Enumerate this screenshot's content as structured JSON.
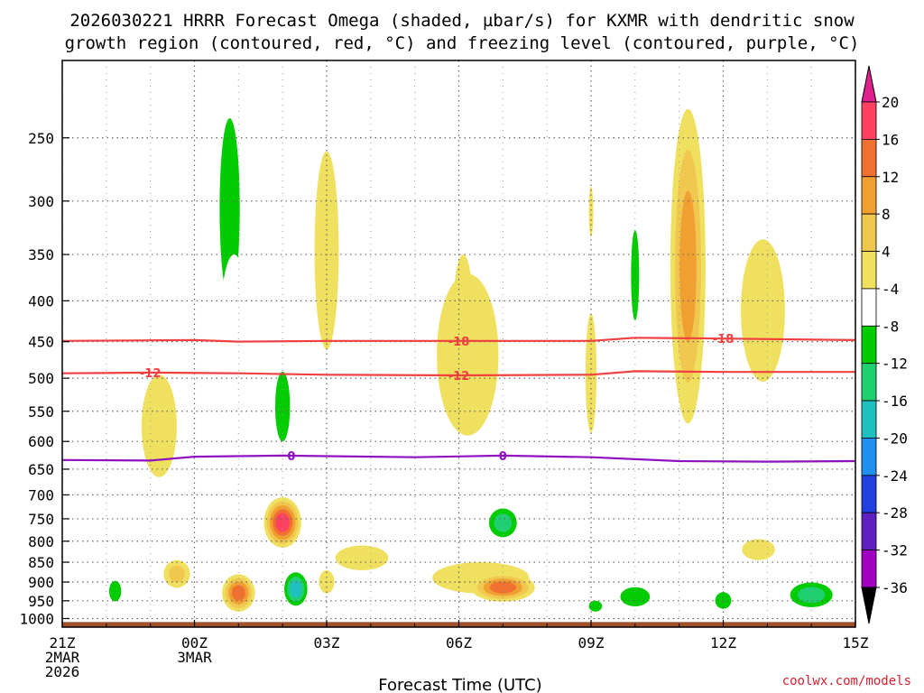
{
  "chart_data": {
    "type": "heatmap",
    "title_line1": "2026030221 HRRR Forecast Omega (shaded, µbar/s) for KXMR with dendritic snow",
    "title_line2": "growth region (contoured, red, °C) and freezing level (contoured, purple, °C)",
    "xlabel": "Forecast Time (UTC)",
    "ylabel": "",
    "credit": "coolwx.com/models",
    "y_ticks": [
      250,
      300,
      350,
      400,
      450,
      500,
      550,
      600,
      650,
      700,
      750,
      800,
      850,
      900,
      950,
      1000
    ],
    "y_range_hpa": [
      200,
      1025
    ],
    "x_range_hours": [
      0,
      18
    ],
    "x_ticks": [
      {
        "hour": 0,
        "lines": [
          "21Z",
          "2MAR",
          "2026"
        ]
      },
      {
        "hour": 3,
        "lines": [
          "00Z",
          "3MAR"
        ]
      },
      {
        "hour": 6,
        "lines": [
          "03Z"
        ]
      },
      {
        "hour": 9,
        "lines": [
          "06Z"
        ]
      },
      {
        "hour": 12,
        "lines": [
          "09Z"
        ]
      },
      {
        "hour": 15,
        "lines": [
          "12Z"
        ]
      },
      {
        "hour": 18,
        "lines": [
          "15Z"
        ]
      }
    ],
    "colorbar": {
      "labels": [
        "20",
        "16",
        "12",
        "8",
        "4",
        "-4",
        "-8",
        "-12",
        "-16",
        "-20",
        "-24",
        "-28",
        "-32",
        "-36"
      ],
      "colors": [
        "#ff4060",
        "#f07030",
        "#f0a030",
        "#f0c850",
        "#f0e060",
        "#ffffff",
        "#00cc00",
        "#20d070",
        "#20c0c0",
        "#2090f0",
        "#2040e0",
        "#6020c0",
        "#a000c0",
        "#a0a0a0"
      ],
      "top_arrow_color": "#e0208c",
      "bottom_arrow_color": "#000000"
    },
    "contours": [
      {
        "name": "-18 C isotherm",
        "label": "-18",
        "color": "#f04040",
        "labels_at_hours": [
          9.0,
          15.0
        ],
        "points": [
          [
            0,
            449
          ],
          [
            3,
            448
          ],
          [
            4,
            450
          ],
          [
            6,
            449
          ],
          [
            9,
            449
          ],
          [
            12,
            449
          ],
          [
            13,
            445
          ],
          [
            15,
            446
          ],
          [
            18,
            448
          ]
        ]
      },
      {
        "name": "-12 C isotherm",
        "label": "-12",
        "color": "#f04040",
        "labels_at_hours": [
          2.0,
          9.0
        ],
        "points": [
          [
            0,
            493
          ],
          [
            2,
            492
          ],
          [
            4,
            493
          ],
          [
            6,
            495
          ],
          [
            9,
            496
          ],
          [
            12,
            495
          ],
          [
            13,
            490
          ],
          [
            15,
            491
          ],
          [
            18,
            491
          ]
        ]
      },
      {
        "name": "freezing level",
        "label": "0",
        "color": "#9010c0",
        "labels_at_hours": [
          5.2,
          10.0
        ],
        "points": [
          [
            0,
            633
          ],
          [
            2,
            634
          ],
          [
            3,
            627
          ],
          [
            5,
            625
          ],
          [
            8,
            628
          ],
          [
            10,
            625
          ],
          [
            12,
            628
          ],
          [
            14,
            635
          ],
          [
            16,
            636
          ],
          [
            18,
            635
          ]
        ]
      }
    ],
    "omega_regions": [
      {
        "hour": 3.8,
        "hpa": 330,
        "w_hours": 0.75,
        "h_hpa": 280,
        "levels": [
          "-4",
          "-8"
        ]
      },
      {
        "hour": 3.9,
        "hpa": 430,
        "w_hours": 0.6,
        "h_hpa": 160,
        "levels": [
          "-4"
        ]
      },
      {
        "hour": 6.0,
        "hpa": 360,
        "w_hours": 0.55,
        "h_hpa": 200,
        "levels": [
          "4"
        ]
      },
      {
        "hour": 2.2,
        "hpa": 580,
        "w_hours": 0.8,
        "h_hpa": 170,
        "levels": [
          "4"
        ]
      },
      {
        "hour": 5.0,
        "hpa": 550,
        "w_hours": 0.55,
        "h_hpa": 180,
        "levels": [
          "-4",
          "-8"
        ]
      },
      {
        "hour": 1.2,
        "hpa": 490,
        "w_hours": 0.15,
        "h_hpa": 70,
        "levels": [
          "-4"
        ]
      },
      {
        "hour": 9.2,
        "hpa": 480,
        "w_hours": 1.4,
        "h_hpa": 220,
        "levels": [
          "4"
        ]
      },
      {
        "hour": 9.1,
        "hpa": 420,
        "w_hours": 0.45,
        "h_hpa": 140,
        "levels": [
          "4"
        ]
      },
      {
        "hour": 11.9,
        "hpa": 400,
        "w_hours": 0.25,
        "h_hpa": 220,
        "levels": [
          "-4"
        ]
      },
      {
        "hour": 12.0,
        "hpa": 500,
        "w_hours": 0.25,
        "h_hpa": 170,
        "levels": [
          "4"
        ]
      },
      {
        "hour": 12.0,
        "hpa": 310,
        "w_hours": 0.1,
        "h_hpa": 45,
        "levels": [
          "4"
        ]
      },
      {
        "hour": 13.0,
        "hpa": 380,
        "w_hours": 0.3,
        "h_hpa": 160,
        "levels": [
          "-4",
          "-8"
        ]
      },
      {
        "hour": 14.2,
        "hpa": 400,
        "w_hours": 0.8,
        "h_hpa": 340,
        "levels": [
          "4",
          "8",
          "12"
        ]
      },
      {
        "hour": 15.9,
        "hpa": 420,
        "w_hours": 1.0,
        "h_hpa": 170,
        "levels": [
          "4"
        ]
      },
      {
        "hour": 14.0,
        "hpa": 680,
        "w_hours": 0.13,
        "h_hpa": 25,
        "levels": [
          "-4"
        ]
      },
      {
        "hour": 2.2,
        "hpa": 755,
        "w_hours": 0.35,
        "h_hpa": 55,
        "levels": [
          "-4"
        ]
      },
      {
        "hour": 5.0,
        "hpa": 760,
        "w_hours": 0.85,
        "h_hpa": 110,
        "levels": [
          "4",
          "8",
          "12",
          "16",
          "20"
        ]
      },
      {
        "hour": 10.0,
        "hpa": 760,
        "w_hours": 0.85,
        "h_hpa": 85,
        "levels": [
          "-4",
          "-8",
          "-12"
        ]
      },
      {
        "hour": 6.8,
        "hpa": 840,
        "w_hours": 1.2,
        "h_hpa": 60,
        "levels": [
          "4"
        ]
      },
      {
        "hour": 2.6,
        "hpa": 880,
        "w_hours": 0.6,
        "h_hpa": 70,
        "levels": [
          "4",
          "8"
        ]
      },
      {
        "hour": 1.2,
        "hpa": 925,
        "w_hours": 0.45,
        "h_hpa": 90,
        "levels": [
          "-4",
          "-8"
        ]
      },
      {
        "hour": 4.0,
        "hpa": 930,
        "w_hours": 0.75,
        "h_hpa": 100,
        "levels": [
          "4",
          "8",
          "12",
          "16"
        ]
      },
      {
        "hour": 5.3,
        "hpa": 920,
        "w_hours": 0.65,
        "h_hpa": 110,
        "levels": [
          "-4",
          "-8",
          "-12",
          "-16"
        ]
      },
      {
        "hour": 6.0,
        "hpa": 900,
        "w_hours": 0.35,
        "h_hpa": 60,
        "levels": [
          "4"
        ]
      },
      {
        "hour": 9.5,
        "hpa": 890,
        "w_hours": 2.2,
        "h_hpa": 80,
        "levels": [
          "4"
        ]
      },
      {
        "hour": 10.0,
        "hpa": 915,
        "w_hours": 1.45,
        "h_hpa": 75,
        "levels": [
          "4",
          "8",
          "12",
          "16"
        ]
      },
      {
        "hour": 13.0,
        "hpa": 940,
        "w_hours": 1.1,
        "h_hpa": 85,
        "levels": [
          "-4",
          "-8"
        ]
      },
      {
        "hour": 12.1,
        "hpa": 965,
        "w_hours": 0.3,
        "h_hpa": 30,
        "levels": [
          "-8"
        ]
      },
      {
        "hour": 15.0,
        "hpa": 950,
        "w_hours": 0.6,
        "h_hpa": 75,
        "levels": [
          "-4",
          "-8"
        ]
      },
      {
        "hour": 17.0,
        "hpa": 935,
        "w_hours": 1.3,
        "h_hpa": 90,
        "levels": [
          "-4",
          "-8",
          "-12"
        ]
      },
      {
        "hour": 15.8,
        "hpa": 820,
        "w_hours": 0.75,
        "h_hpa": 50,
        "levels": [
          "4"
        ]
      }
    ],
    "ground": {
      "top_hpa": 1010,
      "color": "#a0522d"
    }
  }
}
